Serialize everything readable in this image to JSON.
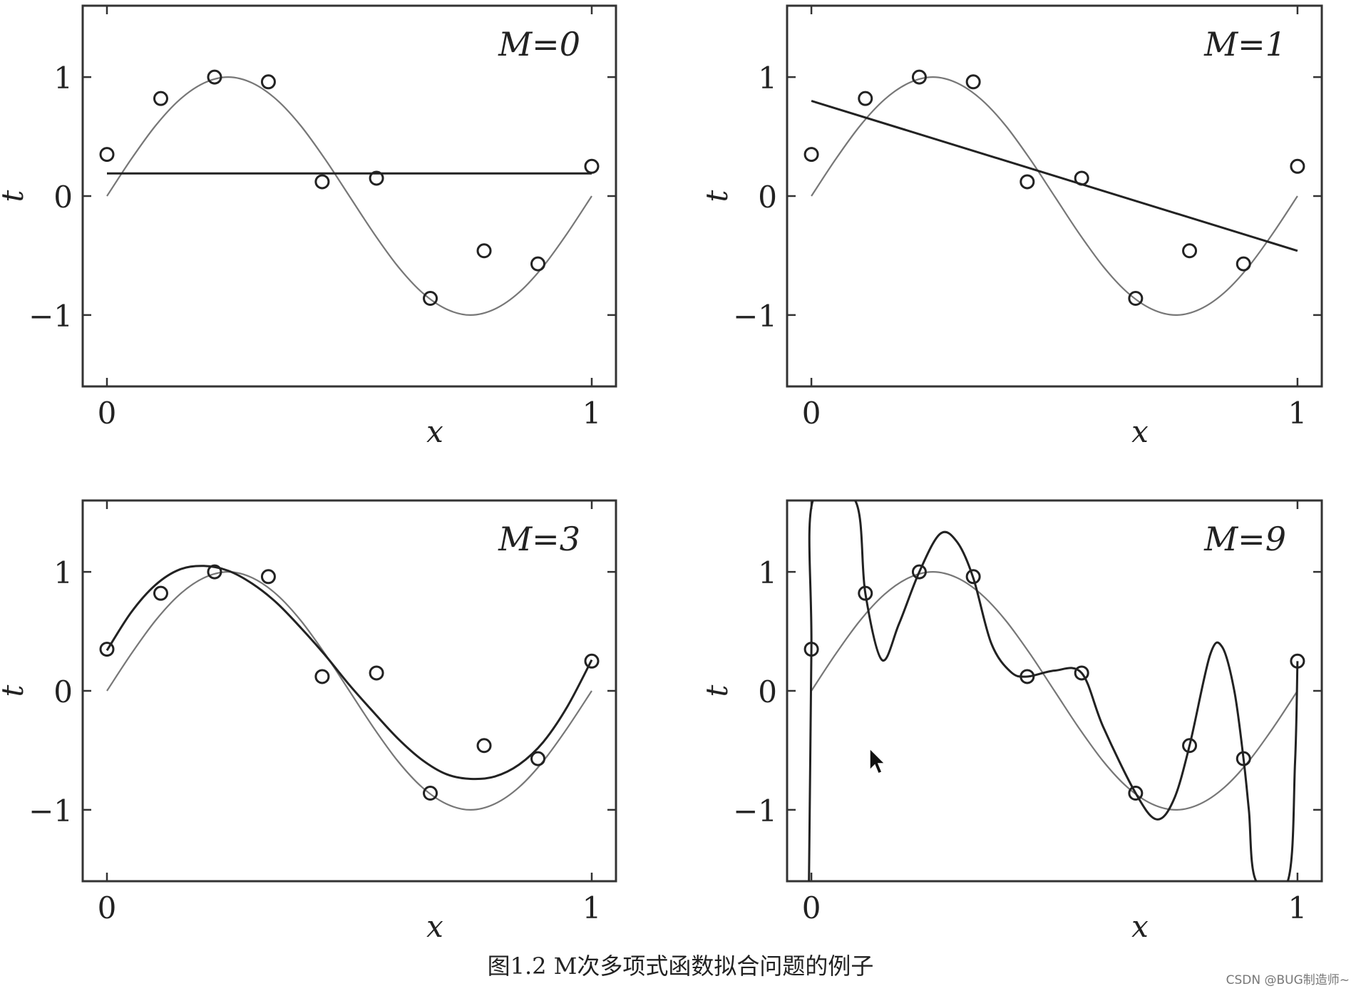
{
  "chart_data": [
    {
      "type": "line",
      "title": "M=0",
      "xlabel": "x",
      "ylabel": "t",
      "xlim": [
        -0.05,
        1.05
      ],
      "ylim": [
        -1.6,
        1.6
      ],
      "xticks": [
        0,
        1
      ],
      "xtick_labels": [
        "0",
        "1"
      ],
      "yticks": [
        -1,
        0,
        1
      ],
      "ytick_labels": [
        "−1",
        "0",
        "1"
      ],
      "grid": false,
      "series": [
        {
          "kind": "reference",
          "color": "#777777",
          "x": [
            0,
            0.05,
            0.1,
            0.15,
            0.2,
            0.25,
            0.3,
            0.35,
            0.4,
            0.45,
            0.5,
            0.55,
            0.6,
            0.65,
            0.7,
            0.75,
            0.8,
            0.85,
            0.9,
            0.95,
            1.0
          ],
          "y": [
            0,
            0.31,
            0.59,
            0.81,
            0.95,
            1.0,
            0.95,
            0.81,
            0.59,
            0.31,
            0,
            -0.31,
            -0.59,
            -0.81,
            -0.95,
            -1.0,
            -0.95,
            -0.81,
            -0.59,
            -0.31,
            0
          ]
        },
        {
          "kind": "fit",
          "color": "#222222",
          "x": [
            0,
            1
          ],
          "y": [
            0.19,
            0.19
          ]
        },
        {
          "kind": "points",
          "color": "#222222",
          "x": [
            0,
            0.111,
            0.222,
            0.333,
            0.444,
            0.556,
            0.667,
            0.778,
            0.889,
            1.0
          ],
          "y": [
            0.35,
            0.82,
            1.0,
            0.96,
            0.12,
            0.15,
            -0.86,
            -0.46,
            -0.57,
            0.25
          ]
        }
      ]
    },
    {
      "type": "line",
      "title": "M=1",
      "xlabel": "x",
      "ylabel": "t",
      "xlim": [
        -0.05,
        1.05
      ],
      "ylim": [
        -1.6,
        1.6
      ],
      "xticks": [
        0,
        1
      ],
      "xtick_labels": [
        "0",
        "1"
      ],
      "yticks": [
        -1,
        0,
        1
      ],
      "ytick_labels": [
        "−1",
        "0",
        "1"
      ],
      "grid": false,
      "series": [
        {
          "kind": "reference",
          "color": "#777777",
          "x": [
            0,
            0.05,
            0.1,
            0.15,
            0.2,
            0.25,
            0.3,
            0.35,
            0.4,
            0.45,
            0.5,
            0.55,
            0.6,
            0.65,
            0.7,
            0.75,
            0.8,
            0.85,
            0.9,
            0.95,
            1.0
          ],
          "y": [
            0,
            0.31,
            0.59,
            0.81,
            0.95,
            1.0,
            0.95,
            0.81,
            0.59,
            0.31,
            0,
            -0.31,
            -0.59,
            -0.81,
            -0.95,
            -1.0,
            -0.95,
            -0.81,
            -0.59,
            -0.31,
            0
          ]
        },
        {
          "kind": "fit",
          "color": "#222222",
          "x": [
            0,
            1
          ],
          "y": [
            0.8,
            -0.46
          ]
        },
        {
          "kind": "points",
          "color": "#222222",
          "x": [
            0,
            0.111,
            0.222,
            0.333,
            0.444,
            0.556,
            0.667,
            0.778,
            0.889,
            1.0
          ],
          "y": [
            0.35,
            0.82,
            1.0,
            0.96,
            0.12,
            0.15,
            -0.86,
            -0.46,
            -0.57,
            0.25
          ]
        }
      ]
    },
    {
      "type": "line",
      "title": "M=3",
      "xlabel": "x",
      "ylabel": "t",
      "xlim": [
        -0.05,
        1.05
      ],
      "ylim": [
        -1.6,
        1.6
      ],
      "xticks": [
        0,
        1
      ],
      "xtick_labels": [
        "0",
        "1"
      ],
      "yticks": [
        -1,
        0,
        1
      ],
      "ytick_labels": [
        "−1",
        "0",
        "1"
      ],
      "grid": false,
      "series": [
        {
          "kind": "reference",
          "color": "#777777",
          "x": [
            0,
            0.05,
            0.1,
            0.15,
            0.2,
            0.25,
            0.3,
            0.35,
            0.4,
            0.45,
            0.5,
            0.55,
            0.6,
            0.65,
            0.7,
            0.75,
            0.8,
            0.85,
            0.9,
            0.95,
            1.0
          ],
          "y": [
            0,
            0.31,
            0.59,
            0.81,
            0.95,
            1.0,
            0.95,
            0.81,
            0.59,
            0.31,
            0,
            -0.31,
            -0.59,
            -0.81,
            -0.95,
            -1.0,
            -0.95,
            -0.81,
            -0.59,
            -0.31,
            0
          ]
        },
        {
          "kind": "fit",
          "color": "#222222",
          "x": [
            0,
            0.05,
            0.1,
            0.15,
            0.2,
            0.25,
            0.3,
            0.35,
            0.4,
            0.45,
            0.5,
            0.55,
            0.6,
            0.65,
            0.7,
            0.75,
            0.8,
            0.85,
            0.9,
            0.95,
            1.0
          ],
          "y": [
            0.34,
            0.66,
            0.89,
            1.02,
            1.05,
            1.01,
            0.9,
            0.74,
            0.53,
            0.3,
            0.05,
            -0.18,
            -0.4,
            -0.58,
            -0.7,
            -0.74,
            -0.72,
            -0.62,
            -0.43,
            -0.13,
            0.26
          ]
        },
        {
          "kind": "points",
          "color": "#222222",
          "x": [
            0,
            0.111,
            0.222,
            0.333,
            0.444,
            0.556,
            0.667,
            0.778,
            0.889,
            1.0
          ],
          "y": [
            0.35,
            0.82,
            1.0,
            0.96,
            0.12,
            0.15,
            -0.86,
            -0.46,
            -0.57,
            0.25
          ]
        }
      ]
    },
    {
      "type": "line",
      "title": "M=9",
      "xlabel": "x",
      "ylabel": "t",
      "xlim": [
        -0.05,
        1.05
      ],
      "ylim": [
        -1.6,
        1.6
      ],
      "xticks": [
        0,
        1
      ],
      "xtick_labels": [
        "0",
        "1"
      ],
      "yticks": [
        -1,
        0,
        1
      ],
      "ytick_labels": [
        "−1",
        "0",
        "1"
      ],
      "grid": false,
      "series": [
        {
          "kind": "reference",
          "color": "#777777",
          "x": [
            0,
            0.05,
            0.1,
            0.15,
            0.2,
            0.25,
            0.3,
            0.35,
            0.4,
            0.45,
            0.5,
            0.55,
            0.6,
            0.65,
            0.7,
            0.75,
            0.8,
            0.85,
            0.9,
            0.95,
            1.0
          ],
          "y": [
            0,
            0.31,
            0.59,
            0.81,
            0.95,
            1.0,
            0.95,
            0.81,
            0.59,
            0.31,
            0,
            -0.31,
            -0.59,
            -0.81,
            -0.95,
            -1.0,
            -0.95,
            -0.81,
            -0.59,
            -0.31,
            0
          ]
        },
        {
          "kind": "fit",
          "color": "#222222",
          "x": [
            -0.005,
            0,
            0.003,
            0.09,
            0.111,
            0.145,
            0.18,
            0.222,
            0.265,
            0.3,
            0.333,
            0.37,
            0.41,
            0.444,
            0.5,
            0.556,
            0.6,
            0.667,
            0.71,
            0.745,
            0.778,
            0.82,
            0.845,
            0.87,
            0.889,
            0.9,
            0.915,
            0.98,
            0.995,
            1.0
          ],
          "y": [
            -1.6,
            0.35,
            1.6,
            1.6,
            0.82,
            0.26,
            0.56,
            1.0,
            1.32,
            1.25,
            0.95,
            0.4,
            0.16,
            0.12,
            0.17,
            0.15,
            -0.3,
            -0.86,
            -1.08,
            -0.92,
            -0.46,
            0.3,
            0.37,
            0.0,
            -0.57,
            -1.0,
            -1.6,
            -1.6,
            -0.6,
            0.25
          ]
        },
        {
          "kind": "points",
          "color": "#222222",
          "x": [
            0,
            0.111,
            0.222,
            0.333,
            0.444,
            0.556,
            0.667,
            0.778,
            0.889,
            1.0
          ],
          "y": [
            0.35,
            0.82,
            1.0,
            0.96,
            0.12,
            0.15,
            -0.86,
            -0.46,
            -0.57,
            0.25
          ]
        }
      ]
    }
  ],
  "caption": "图1.2    M次多项式函数拟合问题的例子",
  "watermark": "CSDN @BUG制造师~",
  "cursor_icon": "arrow-cursor-icon"
}
